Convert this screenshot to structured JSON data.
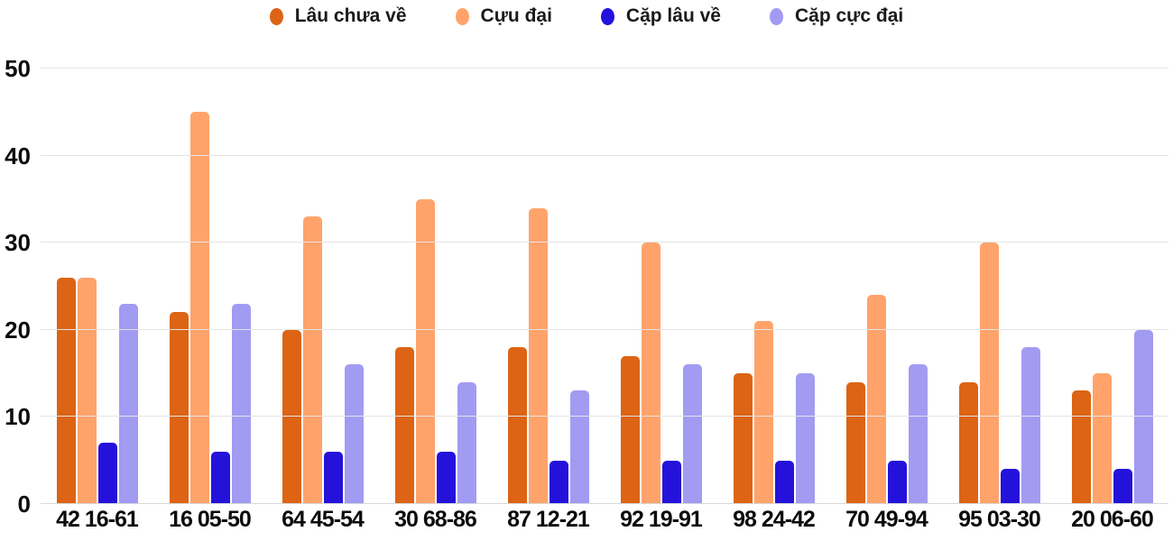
{
  "chart_data": {
    "type": "bar",
    "title": "",
    "xlabel": "",
    "ylabel": "",
    "ylim": [
      0,
      50
    ],
    "yticks": [
      0,
      10,
      20,
      30,
      40,
      50
    ],
    "grid": "horizontal",
    "legend_position": "top",
    "categories": [
      "42 16-61",
      "16 05-50",
      "64 45-54",
      "30 68-86",
      "87 12-21",
      "92 19-91",
      "98 24-42",
      "70 49-94",
      "95 03-30",
      "20 06-60"
    ],
    "series": [
      {
        "name": "Lâu chưa về",
        "color": "#DC6414",
        "values": [
          26,
          22,
          20,
          18,
          18,
          17,
          15,
          14,
          14,
          13
        ]
      },
      {
        "name": "Cựu đại",
        "color": "#FFA36B",
        "values": [
          26,
          45,
          33,
          35,
          34,
          30,
          21,
          24,
          30,
          15
        ]
      },
      {
        "name": "Cặp lâu về",
        "color": "#2412DB",
        "values": [
          7,
          6,
          6,
          6,
          5,
          5,
          5,
          5,
          4,
          4
        ]
      },
      {
        "name": "Cặp cực đại",
        "color": "#A29BF2",
        "values": [
          23,
          23,
          16,
          14,
          13,
          16,
          15,
          16,
          18,
          20
        ]
      }
    ]
  },
  "colors": {
    "gridline": "#e4e4e4",
    "axis_line": "#d8d8d8",
    "text": "#0c0c0c"
  }
}
